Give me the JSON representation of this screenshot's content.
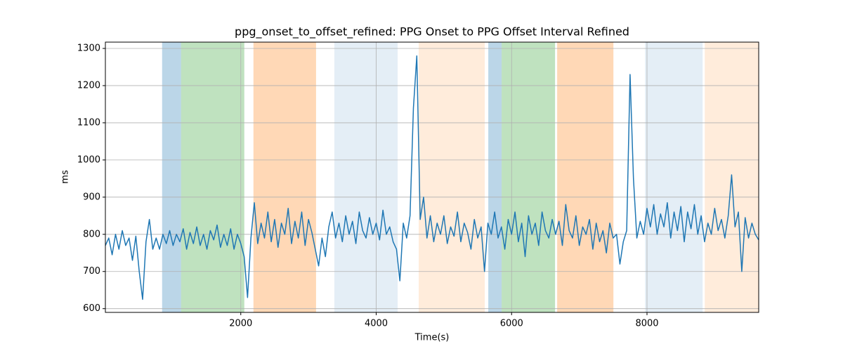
{
  "chart_data": {
    "type": "line",
    "title": "ppg_onset_to_offset_refined: PPG Onset to PPG Offset Interval Refined",
    "x_label": "Time(s)",
    "y_label": "ms",
    "xlim": [
      0,
      9650
    ],
    "ylim": [
      590,
      1317
    ],
    "xticks": [
      2000,
      4000,
      6000,
      8000
    ],
    "yticks": [
      600,
      700,
      800,
      900,
      1000,
      1100,
      1200,
      1300
    ],
    "grid": true,
    "spans": [
      {
        "start": 838,
        "end": 1118,
        "color": "#1f77b44d"
      },
      {
        "start": 1118,
        "end": 2052,
        "color": "#2ca02c4d"
      },
      {
        "start": 2187,
        "end": 3112,
        "color": "#ff7f0e4d"
      },
      {
        "start": 3382,
        "end": 4317,
        "color": "#1f77b41f"
      },
      {
        "start": 4628,
        "end": 5604,
        "color": "#ff7f0e26"
      },
      {
        "start": 5656,
        "end": 5853,
        "color": "#1f77b44d"
      },
      {
        "start": 5853,
        "end": 6642,
        "color": "#2ca02c4d"
      },
      {
        "start": 6673,
        "end": 7504,
        "color": "#ff7f0e4d"
      },
      {
        "start": 7971,
        "end": 8822,
        "color": "#1f77b41f"
      },
      {
        "start": 8853,
        "end": 9650,
        "color": "#ff7f0e26"
      }
    ],
    "x": [
      0,
      50,
      100,
      150,
      200,
      250,
      300,
      350,
      400,
      450,
      500,
      550,
      600,
      650,
      700,
      750,
      800,
      850,
      900,
      950,
      1000,
      1050,
      1100,
      1150,
      1200,
      1250,
      1300,
      1350,
      1400,
      1450,
      1500,
      1550,
      1600,
      1650,
      1700,
      1750,
      1800,
      1850,
      1900,
      1950,
      2000,
      2050,
      2100,
      2150,
      2200,
      2250,
      2300,
      2350,
      2400,
      2450,
      2500,
      2550,
      2600,
      2650,
      2700,
      2750,
      2800,
      2850,
      2900,
      2950,
      3000,
      3050,
      3100,
      3150,
      3200,
      3250,
      3300,
      3350,
      3400,
      3450,
      3500,
      3550,
      3600,
      3650,
      3700,
      3750,
      3800,
      3850,
      3900,
      3950,
      4000,
      4050,
      4100,
      4150,
      4200,
      4250,
      4300,
      4350,
      4400,
      4450,
      4500,
      4550,
      4600,
      4650,
      4700,
      4750,
      4800,
      4850,
      4900,
      4950,
      5000,
      5050,
      5100,
      5150,
      5200,
      5250,
      5300,
      5350,
      5400,
      5450,
      5500,
      5550,
      5600,
      5650,
      5700,
      5750,
      5800,
      5850,
      5900,
      5950,
      6000,
      6050,
      6100,
      6150,
      6200,
      6250,
      6300,
      6350,
      6400,
      6450,
      6500,
      6550,
      6600,
      6650,
      6700,
      6750,
      6800,
      6850,
      6900,
      6950,
      7000,
      7050,
      7100,
      7150,
      7200,
      7250,
      7300,
      7350,
      7400,
      7450,
      7500,
      7550,
      7600,
      7650,
      7700,
      7750,
      7800,
      7850,
      7900,
      7950,
      8000,
      8050,
      8100,
      8150,
      8200,
      8250,
      8300,
      8350,
      8400,
      8450,
      8500,
      8550,
      8600,
      8650,
      8700,
      8750,
      8800,
      8850,
      8900,
      8950,
      9000,
      9050,
      9100,
      9150,
      9200,
      9250,
      9300,
      9350,
      9400,
      9450,
      9500,
      9550,
      9600,
      9650
    ],
    "series": [
      {
        "color": "#1f77b4",
        "values": [
          770,
          790,
          745,
          800,
          760,
          810,
          770,
          790,
          730,
          795,
          700,
          625,
          780,
          840,
          760,
          790,
          760,
          800,
          775,
          810,
          770,
          800,
          780,
          815,
          760,
          805,
          775,
          820,
          770,
          800,
          760,
          810,
          785,
          825,
          765,
          800,
          770,
          815,
          760,
          800,
          775,
          740,
          630,
          790,
          885,
          775,
          830,
          790,
          860,
          780,
          840,
          765,
          830,
          800,
          870,
          775,
          835,
          790,
          860,
          770,
          840,
          805,
          760,
          715,
          790,
          740,
          820,
          860,
          790,
          830,
          780,
          850,
          800,
          835,
          775,
          860,
          810,
          790,
          845,
          800,
          830,
          785,
          865,
          800,
          820,
          780,
          760,
          675,
          830,
          790,
          850,
          1140,
          1280,
          840,
          900,
          790,
          850,
          780,
          830,
          800,
          850,
          775,
          820,
          795,
          860,
          780,
          830,
          805,
          760,
          840,
          790,
          820,
          700,
          830,
          800,
          860,
          790,
          820,
          760,
          840,
          800,
          860,
          780,
          830,
          740,
          850,
          800,
          830,
          770,
          860,
          810,
          790,
          840,
          800,
          835,
          770,
          880,
          810,
          790,
          850,
          770,
          820,
          800,
          840,
          760,
          830,
          780,
          810,
          750,
          830,
          790,
          800,
          720,
          780,
          810,
          1230,
          950,
          790,
          835,
          800,
          870,
          820,
          880,
          800,
          855,
          820,
          885,
          790,
          860,
          810,
          875,
          780,
          860,
          815,
          880,
          800,
          850,
          780,
          830,
          800,
          870,
          810,
          840,
          790,
          850,
          960,
          820,
          860,
          700,
          845,
          790,
          830,
          800,
          785
        ]
      }
    ]
  }
}
